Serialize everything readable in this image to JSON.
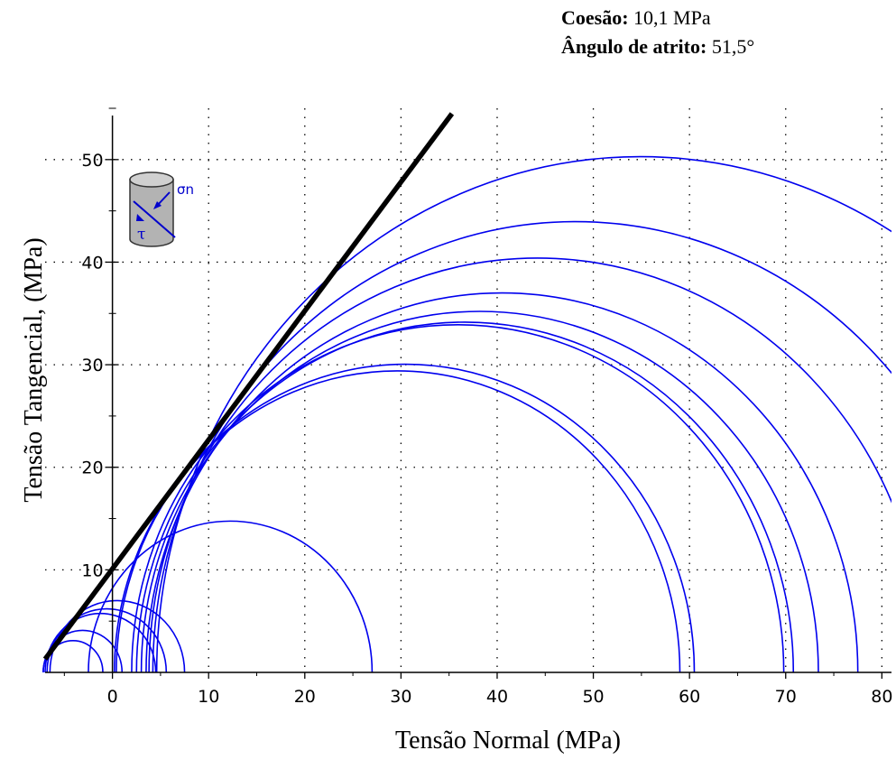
{
  "params": {
    "cohesion_label": "Coesão:",
    "cohesion_value": "10,1 MPa",
    "friction_label": "Ângulo de atrito:",
    "friction_value": "51,5°"
  },
  "chart_data": {
    "type": "line",
    "xlabel": "Tensão Normal (MPa)",
    "ylabel": "Tensão Tangencial, (MPa)",
    "xlim": [
      -7,
      81
    ],
    "ylim": [
      0,
      55
    ],
    "xticks": [
      0,
      10,
      20,
      30,
      40,
      50,
      60,
      70,
      80
    ],
    "yticks": [
      10,
      20,
      30,
      40,
      50
    ],
    "grid": true,
    "grid_style": "dotted",
    "circle_color": "#0000ee",
    "envelope_color": "#000000",
    "envelope": {
      "cohesion": 10.1,
      "friction_angle_deg": 51.5,
      "x_start": -7,
      "x_end": 35.3
    },
    "circles": [
      {
        "sigma3": -7.2,
        "sigma1": -1.0
      },
      {
        "sigma3": -7.2,
        "sigma1": 1.0
      },
      {
        "sigma3": -7.0,
        "sigma1": 4.5
      },
      {
        "sigma3": -6.8,
        "sigma1": 5.6
      },
      {
        "sigma3": -6.5,
        "sigma1": 7.5
      },
      {
        "sigma3": -2.5,
        "sigma1": 27.0
      },
      {
        "sigma3": 0.2,
        "sigma1": 59.0
      },
      {
        "sigma3": 0.4,
        "sigma1": 60.5
      },
      {
        "sigma3": 2.0,
        "sigma1": 69.8
      },
      {
        "sigma3": 2.5,
        "sigma1": 70.8
      },
      {
        "sigma3": 3.0,
        "sigma1": 73.4
      },
      {
        "sigma3": 3.5,
        "sigma1": 77.5
      },
      {
        "sigma3": 3.8,
        "sigma1": 84.6
      },
      {
        "sigma3": 4.2,
        "sigma1": 92.1
      },
      {
        "sigma3": 4.6,
        "sigma1": 105.2
      }
    ],
    "inset_icon": {
      "sigma_label": "σn",
      "tau_label": "τ"
    }
  }
}
